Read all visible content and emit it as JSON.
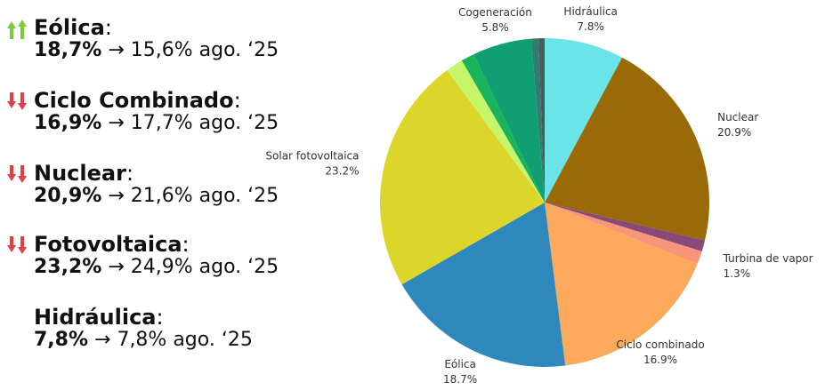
{
  "items": [
    {
      "label": "Eólica",
      "colon": ":",
      "current": "18,7%",
      "rest": "→ 15,6% ago. ‘25"
    },
    {
      "label": "Ciclo Combinado",
      "colon": ":",
      "current": "16,9%",
      "rest": "→ 17,7% ago. ‘25"
    },
    {
      "label": "Nuclear",
      "colon": ":",
      "current": "20,9%",
      "rest": "→ 21,6% ago. ‘25"
    },
    {
      "label": "Fotovoltaica",
      "colon": ":",
      "current": "23,2%",
      "rest": "→ 24,9% ago. ‘25"
    },
    {
      "label": "Hidráulica",
      "colon": ":",
      "current": "7,8%",
      "rest": "→ 7,8% ago. ‘25"
    }
  ],
  "chart_data": {
    "type": "pie",
    "categories": [
      "Hidráulica",
      "Nuclear",
      null,
      "Turbina de vapor",
      "Ciclo combinado",
      "Eólica",
      "Solar fotovoltaica",
      null,
      null,
      "Cogeneración",
      null,
      null
    ],
    "values": [
      7.8,
      20.9,
      1.1,
      1.3,
      16.9,
      18.7,
      23.2,
      1.7,
      1.3,
      5.8,
      0.7,
      0.6
    ],
    "value_labels": [
      "7.8%",
      "20.9%",
      null,
      "1.3%",
      "16.9%",
      "18.7%",
      "23.2%",
      null,
      null,
      "5.8%",
      null,
      null
    ],
    "colors": [
      "#6ae4e8",
      "#9a6a08",
      "#8a4a78",
      "#f7967a",
      "#fda95c",
      "#2e88bb",
      "#dcd62a",
      "#c6f56a",
      "#18b35a",
      "#109f72",
      "#2f7d6e",
      "#4a5a5a"
    ]
  }
}
